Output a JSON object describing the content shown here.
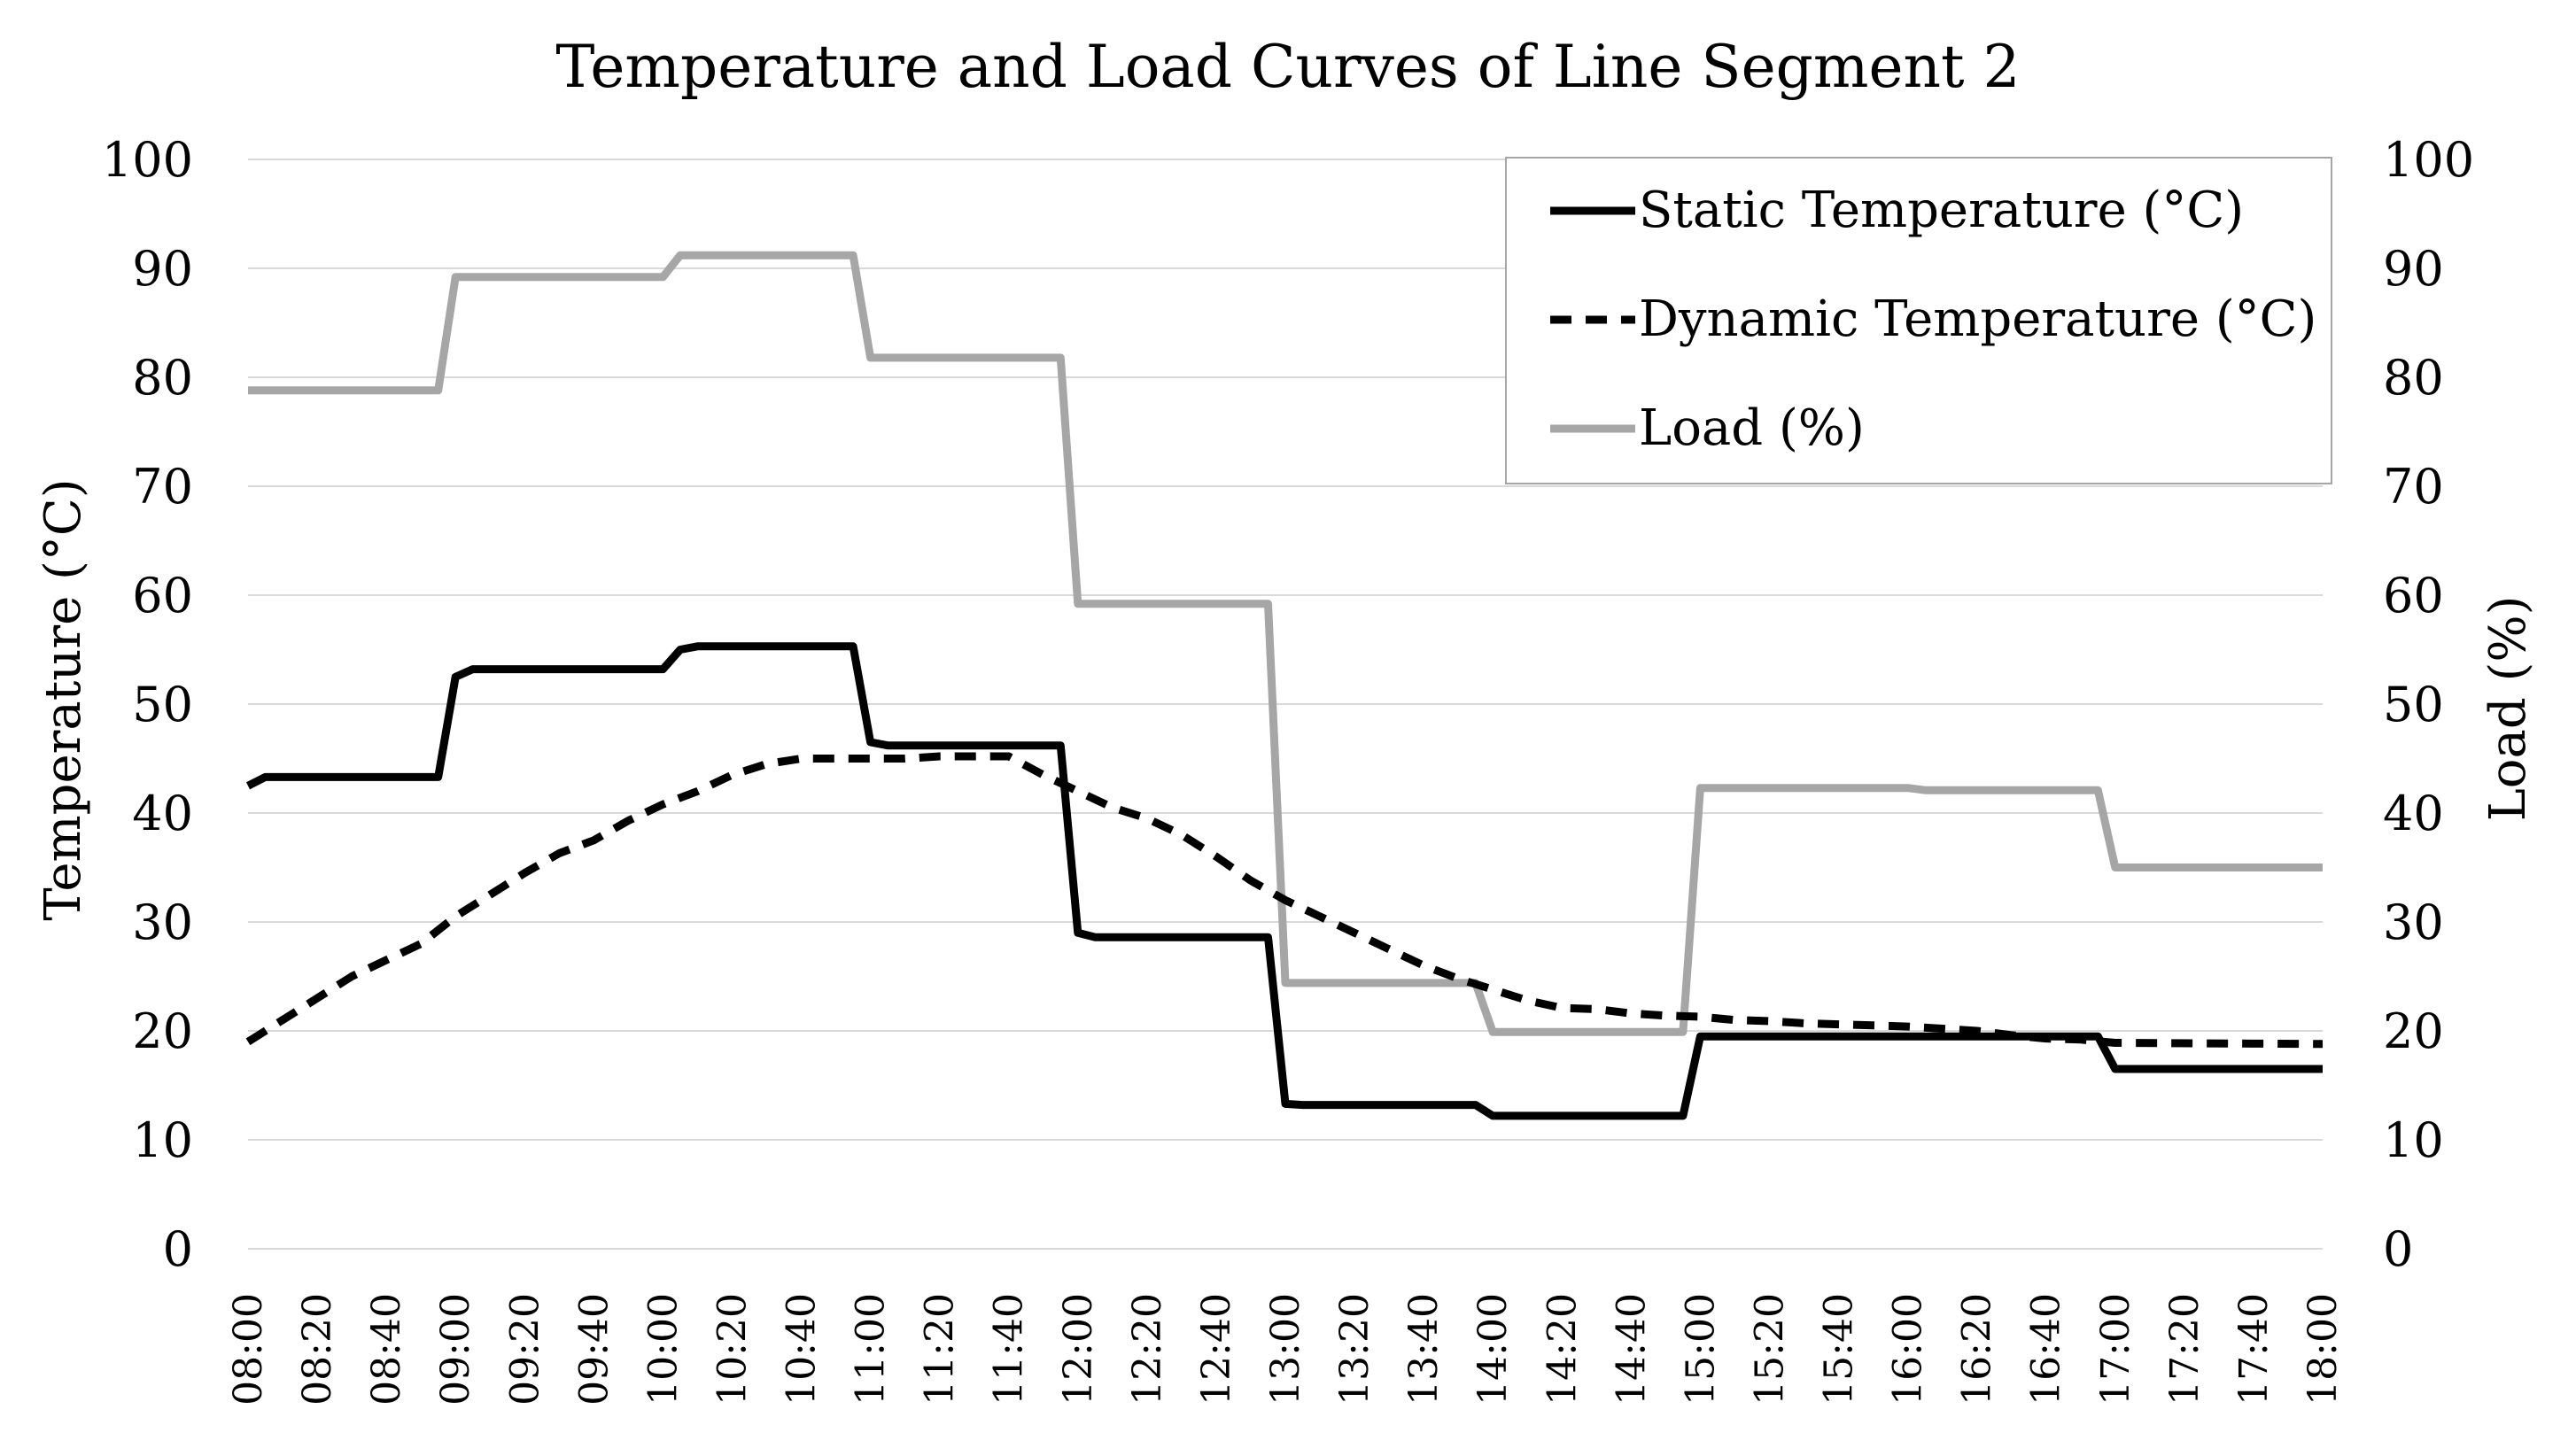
{
  "chart_data": {
    "type": "line",
    "title": "Temperature and Load Curves of Line Segment 2",
    "ylabel": "Temperature  (°C)",
    "y2label": "Load  (%)",
    "ylim": [
      0,
      100
    ],
    "y2lim": [
      0,
      100
    ],
    "yticks": [
      "0",
      "10",
      "20",
      "30",
      "40",
      "50",
      "60",
      "70",
      "80",
      "90",
      "100"
    ],
    "y2ticks": [
      "0",
      "10",
      "20",
      "30",
      "40",
      "50",
      "60",
      "70",
      "80",
      "90",
      "100"
    ],
    "grid": true,
    "legend_position": "top-right",
    "x_start_minutes": 480,
    "x_end_minutes": 1080,
    "x_step_minutes": 10,
    "xtick_labels": [
      "08:00",
      "08:20",
      "08:40",
      "09:00",
      "09:20",
      "09:40",
      "10:00",
      "10:20",
      "10:40",
      "11:00",
      "11:20",
      "11:40",
      "12:00",
      "12:20",
      "12:40",
      "13:00",
      "13:20",
      "13:40",
      "14:00",
      "14:20",
      "14:40",
      "15:00",
      "15:20",
      "15:40",
      "16:00",
      "16:20",
      "16:40",
      "17:00",
      "17:20",
      "17:40",
      "18:00"
    ],
    "series": [
      {
        "name": "Static Temperature (°C)",
        "axis": "left",
        "style": "solid",
        "color": "#000000",
        "points": [
          [
            480,
            42.5
          ],
          [
            485,
            43.3
          ],
          [
            505,
            43.3
          ],
          [
            525,
            43.3
          ],
          [
            535,
            43.3
          ],
          [
            540,
            52.5
          ],
          [
            545,
            53.2
          ],
          [
            580,
            53.2
          ],
          [
            600,
            53.2
          ],
          [
            605,
            55.0
          ],
          [
            610,
            55.3
          ],
          [
            650,
            55.3
          ],
          [
            655,
            55.3
          ],
          [
            660,
            46.5
          ],
          [
            665,
            46.2
          ],
          [
            710,
            46.2
          ],
          [
            715,
            46.2
          ],
          [
            720,
            29.0
          ],
          [
            725,
            28.6
          ],
          [
            770,
            28.6
          ],
          [
            775,
            28.6
          ],
          [
            780,
            13.3
          ],
          [
            785,
            13.2
          ],
          [
            830,
            13.2
          ],
          [
            835,
            13.2
          ],
          [
            840,
            12.2
          ],
          [
            845,
            12.2
          ],
          [
            895,
            12.2
          ],
          [
            900,
            19.5
          ],
          [
            950,
            19.5
          ],
          [
            1015,
            19.5
          ],
          [
            1020,
            16.5
          ],
          [
            1080,
            16.5
          ]
        ]
      },
      {
        "name": "Dynamic Temperature (°C)",
        "axis": "left",
        "style": "dashed",
        "color": "#000000",
        "points": [
          [
            480,
            19.0
          ],
          [
            490,
            21.0
          ],
          [
            500,
            23.0
          ],
          [
            510,
            25.0
          ],
          [
            520,
            26.5
          ],
          [
            530,
            28.0
          ],
          [
            540,
            30.5
          ],
          [
            550,
            32.5
          ],
          [
            560,
            34.5
          ],
          [
            570,
            36.3
          ],
          [
            580,
            37.5
          ],
          [
            590,
            39.3
          ],
          [
            600,
            40.8
          ],
          [
            610,
            42.0
          ],
          [
            620,
            43.5
          ],
          [
            630,
            44.5
          ],
          [
            640,
            45.0
          ],
          [
            650,
            45.0
          ],
          [
            660,
            45.0
          ],
          [
            670,
            45.0
          ],
          [
            680,
            45.2
          ],
          [
            690,
            45.2
          ],
          [
            700,
            45.2
          ],
          [
            710,
            43.5
          ],
          [
            720,
            42.0
          ],
          [
            730,
            40.5
          ],
          [
            740,
            39.5
          ],
          [
            750,
            38.0
          ],
          [
            760,
            36.0
          ],
          [
            770,
            33.8
          ],
          [
            780,
            32.0
          ],
          [
            790,
            30.5
          ],
          [
            800,
            29.0
          ],
          [
            810,
            27.5
          ],
          [
            820,
            26.0
          ],
          [
            830,
            24.8
          ],
          [
            840,
            23.8
          ],
          [
            850,
            22.8
          ],
          [
            860,
            22.1
          ],
          [
            870,
            22.0
          ],
          [
            880,
            21.6
          ],
          [
            890,
            21.4
          ],
          [
            900,
            21.3
          ],
          [
            910,
            21.0
          ],
          [
            920,
            20.9
          ],
          [
            930,
            20.7
          ],
          [
            940,
            20.6
          ],
          [
            950,
            20.5
          ],
          [
            960,
            20.4
          ],
          [
            970,
            20.2
          ],
          [
            980,
            20.0
          ],
          [
            990,
            19.6
          ],
          [
            1000,
            19.3
          ],
          [
            1010,
            19.2
          ],
          [
            1020,
            18.9
          ],
          [
            1080,
            18.8
          ]
        ]
      },
      {
        "name": "Load (%)",
        "axis": "right",
        "style": "solid",
        "color": "#a6a6a6",
        "points": [
          [
            480,
            78.8
          ],
          [
            535,
            78.8
          ],
          [
            540,
            89.2
          ],
          [
            600,
            89.2
          ],
          [
            605,
            91.2
          ],
          [
            655,
            91.2
          ],
          [
            660,
            81.8
          ],
          [
            715,
            81.8
          ],
          [
            720,
            59.2
          ],
          [
            775,
            59.2
          ],
          [
            780,
            24.4
          ],
          [
            835,
            24.4
          ],
          [
            840,
            19.9
          ],
          [
            895,
            19.9
          ],
          [
            900,
            42.3
          ],
          [
            960,
            42.3
          ],
          [
            965,
            42.1
          ],
          [
            1015,
            42.1
          ],
          [
            1020,
            35.0
          ],
          [
            1080,
            35.0
          ]
        ]
      }
    ]
  }
}
